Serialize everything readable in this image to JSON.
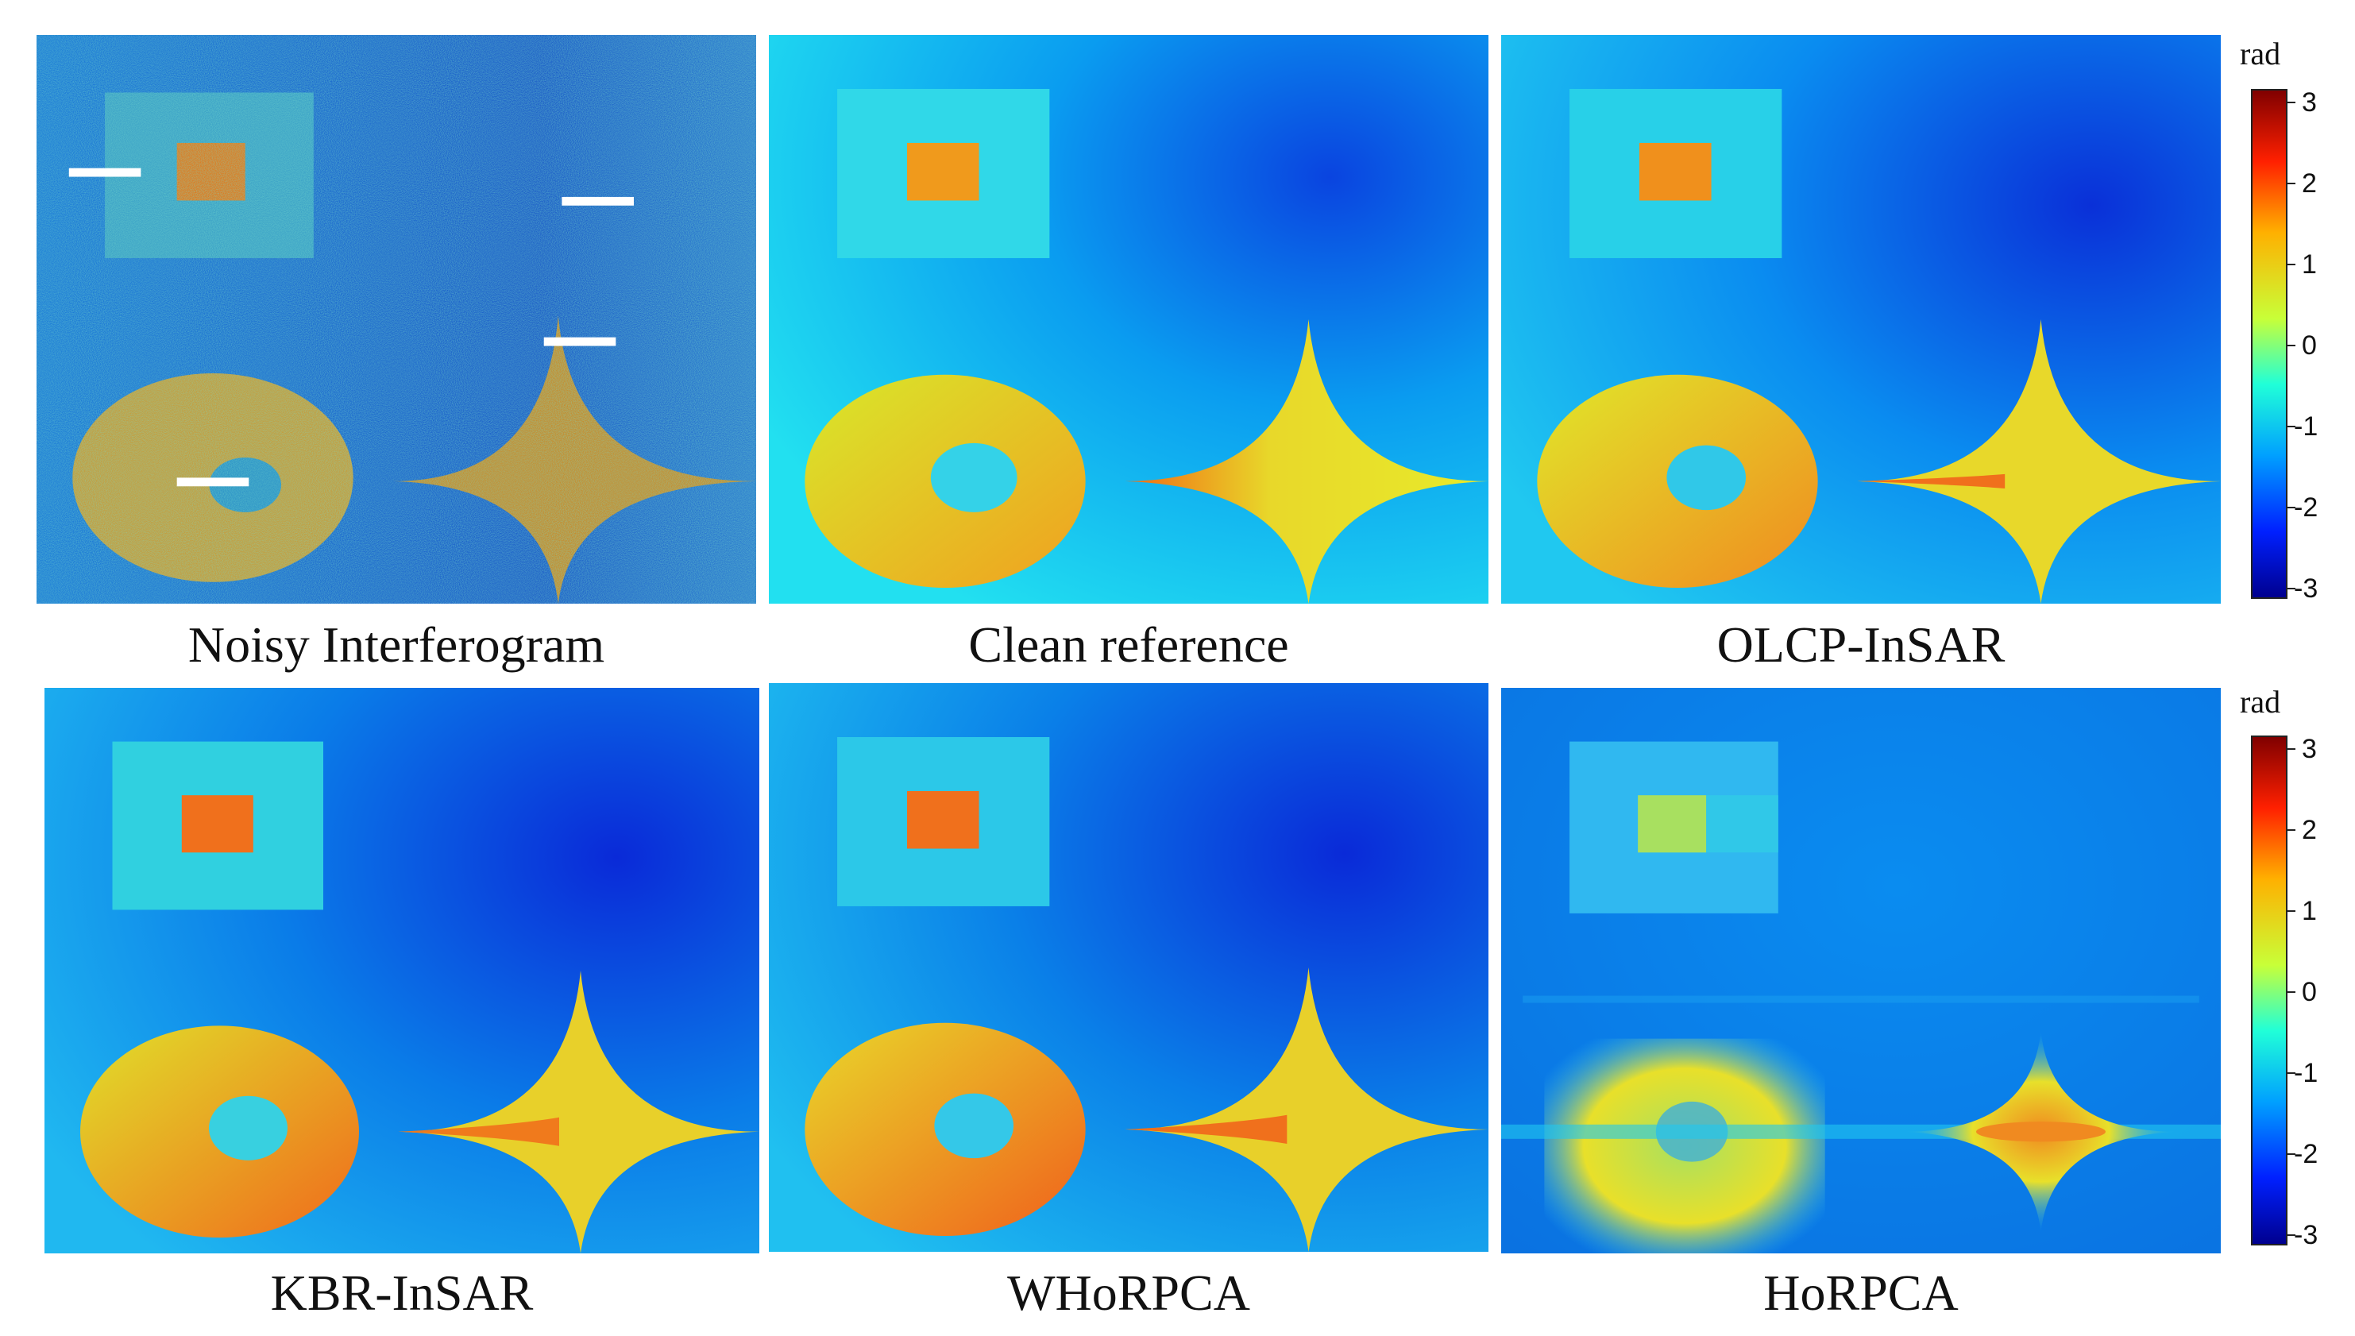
{
  "panels": [
    {
      "caption": "Noisy Interferogram",
      "mode": "noisy"
    },
    {
      "caption": "Clean reference",
      "mode": "clean"
    },
    {
      "caption": "OLCP-InSAR",
      "mode": "olcp"
    },
    {
      "caption": "KBR-InSAR",
      "mode": "kbr"
    },
    {
      "caption": "WHoRPCA",
      "mode": "whorpca"
    },
    {
      "caption": "HoRPCA",
      "mode": "horpca"
    }
  ],
  "colorbars": [
    {
      "unit": "rad",
      "ticks": [
        "3",
        "2",
        "1",
        "0",
        "-1",
        "-2",
        "-3"
      ]
    },
    {
      "unit": "rad",
      "ticks": [
        "3",
        "2",
        "1",
        "0",
        "-1",
        "-2",
        "-3"
      ]
    }
  ],
  "colors": {
    "bg_blue": "#0a78e6",
    "deep_blue": "#0838d8",
    "cyan": "#22d4f0",
    "yellow": "#e6ea2a",
    "orange": "#f08a1c",
    "red_orange": "#e85a18"
  }
}
